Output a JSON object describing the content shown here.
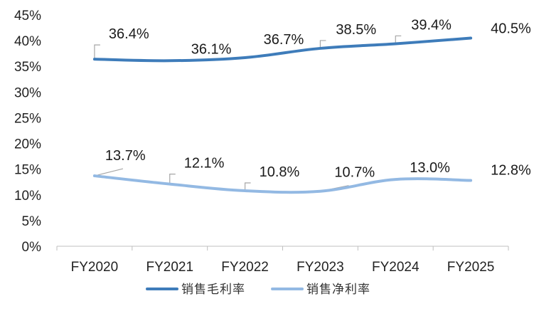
{
  "chart_data": {
    "type": "line",
    "categories": [
      "FY2020",
      "FY2021",
      "FY2022",
      "FY2023",
      "FY2024",
      "FY2025"
    ],
    "series": [
      {
        "name": "销售毛利率",
        "values": [
          36.4,
          36.1,
          36.7,
          38.5,
          39.4,
          40.5
        ],
        "labels": [
          "36.4%",
          "36.1%",
          "36.7%",
          "38.5%",
          "39.4%",
          "40.5%"
        ],
        "color": "#3e7cba"
      },
      {
        "name": "销售净利率",
        "values": [
          13.7,
          12.1,
          10.8,
          10.7,
          13.0,
          12.8
        ],
        "labels": [
          "13.7%",
          "12.1%",
          "10.8%",
          "10.7%",
          "13.0%",
          "12.8%"
        ],
        "color": "#93b9e3"
      }
    ],
    "ylim": [
      0,
      45
    ],
    "yticks": [
      "0%",
      "5%",
      "10%",
      "15%",
      "20%",
      "25%",
      "30%",
      "35%",
      "40%",
      "45%"
    ],
    "grid": false,
    "legend_position": "bottom",
    "title": "",
    "xlabel": "",
    "ylabel": "",
    "leader_color": "#a6a6a6"
  }
}
